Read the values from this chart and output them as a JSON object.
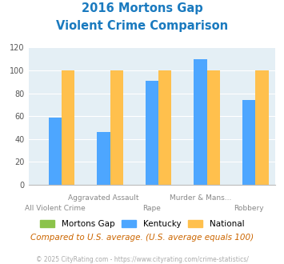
{
  "title_line1": "2016 Mortons Gap",
  "title_line2": "Violent Crime Comparison",
  "categories": [
    "All Violent Crime",
    "Aggravated Assault",
    "Rape",
    "Murder & Mans...",
    "Robbery"
  ],
  "series": {
    "Mortons Gap": [
      0,
      0,
      0,
      0,
      0
    ],
    "Kentucky": [
      59,
      46,
      91,
      110,
      74
    ],
    "National": [
      100,
      100,
      100,
      100,
      100
    ]
  },
  "colors": {
    "Mortons Gap": "#8bc34a",
    "Kentucky": "#4da6ff",
    "National": "#ffc04d"
  },
  "ylim": [
    0,
    120
  ],
  "yticks": [
    0,
    20,
    40,
    60,
    80,
    100,
    120
  ],
  "background_color": "#e4eff5",
  "title_color": "#1a7abf",
  "xlabel_color": "#888888",
  "subtitle_text": "Compared to U.S. average. (U.S. average equals 100)",
  "footer_text": "© 2025 CityRating.com - https://www.cityrating.com/crime-statistics/",
  "subtitle_color": "#cc6600",
  "footer_color": "#aaaaaa",
  "bar_width": 0.27
}
